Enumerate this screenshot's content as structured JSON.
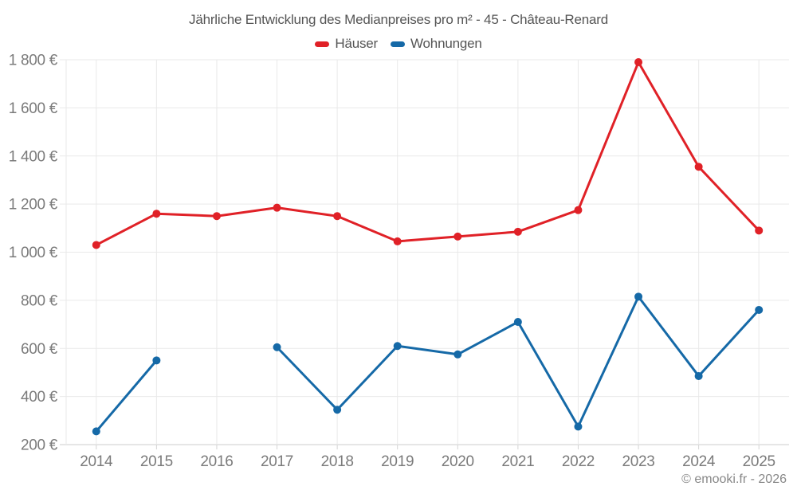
{
  "chart": {
    "title": "Jährliche Entwicklung des Medianpreises pro m² - 45 - Château-Renard",
    "copyright": "© emooki.fr - 2026"
  },
  "chart_data": {
    "type": "line",
    "categories": [
      "2014",
      "2015",
      "2016",
      "2017",
      "2018",
      "2019",
      "2020",
      "2021",
      "2022",
      "2023",
      "2024",
      "2025"
    ],
    "series": [
      {
        "name": "Häuser",
        "color": "#e02127",
        "values": [
          1030,
          1160,
          1150,
          1185,
          1150,
          1045,
          1065,
          1085,
          1175,
          1790,
          1355,
          1090
        ]
      },
      {
        "name": "Wohnungen",
        "color": "#1569a7",
        "values": [
          255,
          550,
          null,
          605,
          345,
          610,
          575,
          710,
          275,
          815,
          485,
          760
        ]
      }
    ],
    "title": "Jährliche Entwicklung des Medianpreises pro m² - 45 - Château-Renard",
    "xlabel": "",
    "ylabel": "",
    "ylim": [
      200,
      1800
    ],
    "ytick_step": 200,
    "ytick_suffix": " €",
    "grid": true,
    "legend_position": "top",
    "missing_points": [
      {
        "series": "Wohnungen",
        "category": "2016"
      }
    ]
  },
  "style": {
    "title_color": "#555555",
    "tick_text_color": "#7b7b7b",
    "copyright_color": "#888888",
    "grid_color": "#e9e9e9",
    "axis_color": "#cccccc",
    "tick_mark_color": "#d4d4d4",
    "background": "#ffffff"
  }
}
